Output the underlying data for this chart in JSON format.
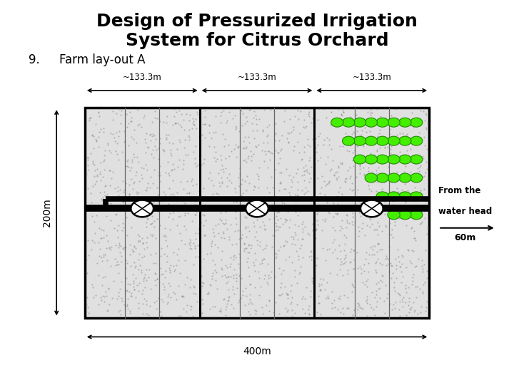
{
  "title_line1": "Design of Pressurized Irrigation",
  "title_line2": "System for Citrus Orchard",
  "subtitle_num": "9.",
  "subtitle_text": "Farm lay-out A",
  "title_fontsize": 18,
  "subtitle_fontsize": 12,
  "bg_color": "#ffffff",
  "field_color": "#e0e0e0",
  "dim_label_133": "~133.3m",
  "dim_label_400": "400m",
  "dim_label_200": "200m",
  "dim_label_60": "60m",
  "annotation_waterhead_1": "From the",
  "annotation_waterhead_2": "water head",
  "green_dots_color": "#44ee00",
  "green_dots_dark": "#228800",
  "fl": 0.165,
  "fr": 0.835,
  "ft": 0.72,
  "fb": 0.175
}
